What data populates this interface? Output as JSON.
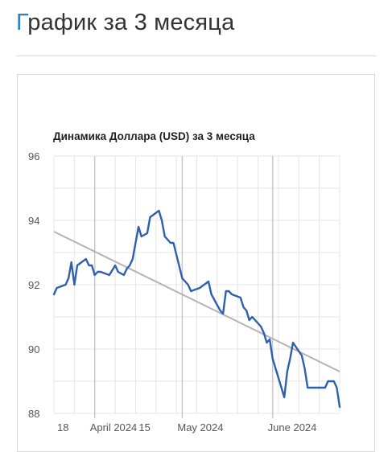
{
  "page": {
    "title_first_letter": "Г",
    "title_rest": "рафик за 3 месяца"
  },
  "colors": {
    "accent": "#2f7fc4",
    "series": "#2e5fb0",
    "trend": "#b4b4b4",
    "grid": "#e4e4e4",
    "month_line": "#c8c8c8"
  },
  "chart_data": {
    "type": "line",
    "title": "Динамика Доллара (USD) за 3 месяца",
    "xlabel": "",
    "ylabel": "",
    "ylim": [
      88,
      96
    ],
    "xlim": [
      "2024-03-18",
      "2024-06-24"
    ],
    "y_ticks": [
      96,
      94,
      92,
      90,
      88
    ],
    "x_ticks": [
      {
        "date": "2024-03-18",
        "label": "18"
      },
      {
        "date": "2024-04-01",
        "label": "April 2024"
      },
      {
        "date": "2024-04-15",
        "label": "15"
      },
      {
        "date": "2024-05-01",
        "label": "May 2024"
      },
      {
        "date": "2024-06-01",
        "label": "June 2024"
      }
    ],
    "month_lines": [
      "2024-04-01",
      "2024-05-01",
      "2024-06-01"
    ],
    "grid": true,
    "legend": "none",
    "series": [
      {
        "x": [
          "2024-03-18",
          "2024-03-19",
          "2024-03-22",
          "2024-03-23",
          "2024-03-24",
          "2024-03-25",
          "2024-03-26",
          "2024-03-29",
          "2024-03-30",
          "2024-03-31",
          "2024-04-01",
          "2024-04-02",
          "2024-04-03",
          "2024-04-06",
          "2024-04-08",
          "2024-04-09",
          "2024-04-11",
          "2024-04-12",
          "2024-04-13",
          "2024-04-14",
          "2024-04-16",
          "2024-04-17",
          "2024-04-19",
          "2024-04-20",
          "2024-04-23",
          "2024-04-24",
          "2024-04-25",
          "2024-04-26",
          "2024-04-27",
          "2024-04-28",
          "2024-05-01",
          "2024-05-03",
          "2024-05-04",
          "2024-05-07",
          "2024-05-10",
          "2024-05-11",
          "2024-05-14",
          "2024-05-15",
          "2024-05-16",
          "2024-05-17",
          "2024-05-18",
          "2024-05-21",
          "2024-05-22",
          "2024-05-23",
          "2024-05-24",
          "2024-05-25",
          "2024-05-28",
          "2024-05-29",
          "2024-05-30",
          "2024-05-31",
          "2024-06-01",
          "2024-06-04",
          "2024-06-05",
          "2024-06-06",
          "2024-06-07",
          "2024-06-08",
          "2024-06-11",
          "2024-06-12",
          "2024-06-13",
          "2024-06-15",
          "2024-06-19",
          "2024-06-20",
          "2024-06-22",
          "2024-06-23",
          "2024-06-24"
        ],
        "y": [
          91.7,
          91.9,
          92.0,
          92.2,
          92.7,
          92.0,
          92.6,
          92.8,
          92.6,
          92.6,
          92.3,
          92.4,
          92.4,
          92.3,
          92.6,
          92.4,
          92.3,
          92.5,
          92.6,
          92.8,
          93.8,
          93.5,
          93.6,
          94.1,
          94.3,
          94.0,
          93.5,
          93.4,
          93.3,
          93.3,
          92.2,
          92.0,
          91.8,
          91.9,
          92.1,
          91.7,
          91.2,
          91.1,
          91.8,
          91.8,
          91.7,
          91.6,
          91.3,
          91.2,
          90.9,
          91.0,
          90.7,
          90.5,
          90.2,
          90.3,
          89.7,
          88.8,
          88.5,
          89.3,
          89.7,
          90.2,
          89.8,
          89.4,
          88.8,
          88.8,
          88.8,
          89.0,
          89.0,
          88.8,
          88.2
        ]
      }
    ],
    "trend": {
      "x": [
        "2024-03-18",
        "2024-06-24"
      ],
      "y": [
        93.65,
        89.3
      ]
    }
  }
}
